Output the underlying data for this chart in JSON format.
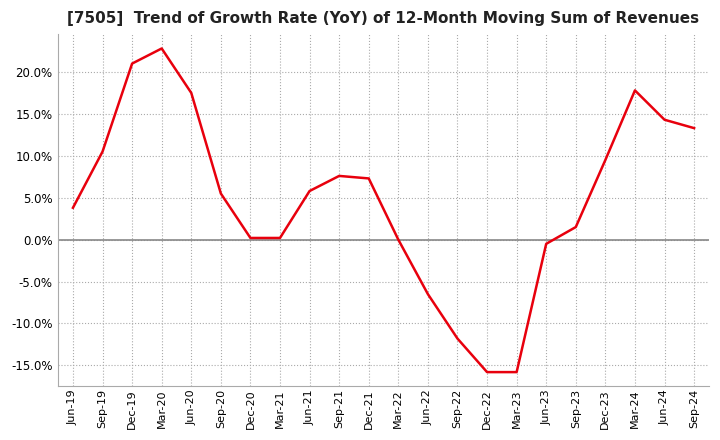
{
  "title": "[7505]  Trend of Growth Rate (YoY) of 12-Month Moving Sum of Revenues",
  "title_fontsize": 11,
  "line_color": "#e8000d",
  "background_color": "#ffffff",
  "grid_color": "#aaaaaa",
  "zero_line_color": "#888888",
  "ylim": [
    -0.175,
    0.245
  ],
  "yticks": [
    -0.15,
    -0.1,
    -0.05,
    0.0,
    0.05,
    0.1,
    0.15,
    0.2
  ],
  "dates": [
    "Jun-19",
    "Sep-19",
    "Dec-19",
    "Mar-20",
    "Jun-20",
    "Sep-20",
    "Dec-20",
    "Mar-21",
    "Jun-21",
    "Sep-21",
    "Dec-21",
    "Mar-22",
    "Jun-22",
    "Sep-22",
    "Dec-22",
    "Mar-23",
    "Jun-23",
    "Sep-23",
    "Dec-23",
    "Mar-24",
    "Jun-24",
    "Sep-24"
  ],
  "values": [
    0.038,
    0.105,
    0.21,
    0.228,
    0.175,
    0.055,
    0.002,
    0.002,
    0.058,
    0.076,
    0.073,
    0.0,
    -0.065,
    -0.118,
    -0.158,
    -0.158,
    -0.005,
    0.015,
    0.095,
    0.178,
    0.143,
    0.133
  ]
}
